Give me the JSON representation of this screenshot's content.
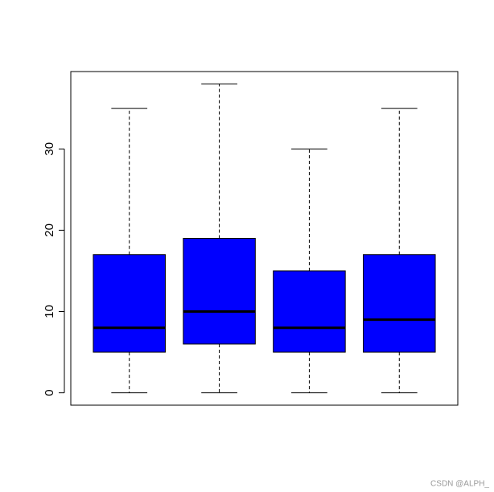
{
  "chart_data": {
    "type": "box",
    "color": "#0000ff",
    "boxes": [
      {
        "min": 0,
        "q1": 5,
        "median": 8,
        "q3": 17,
        "max": 35
      },
      {
        "min": 0,
        "q1": 6,
        "median": 10,
        "q3": 19,
        "max": 38
      },
      {
        "min": 0,
        "q1": 5,
        "median": 8,
        "q3": 15,
        "max": 30
      },
      {
        "min": 0,
        "q1": 5,
        "median": 9,
        "q3": 17,
        "max": 35
      }
    ],
    "ylim": [
      -1.52,
      39.52
    ],
    "yticks": [
      0,
      10,
      20,
      30
    ]
  },
  "watermark": "CSDN @ALPH_"
}
